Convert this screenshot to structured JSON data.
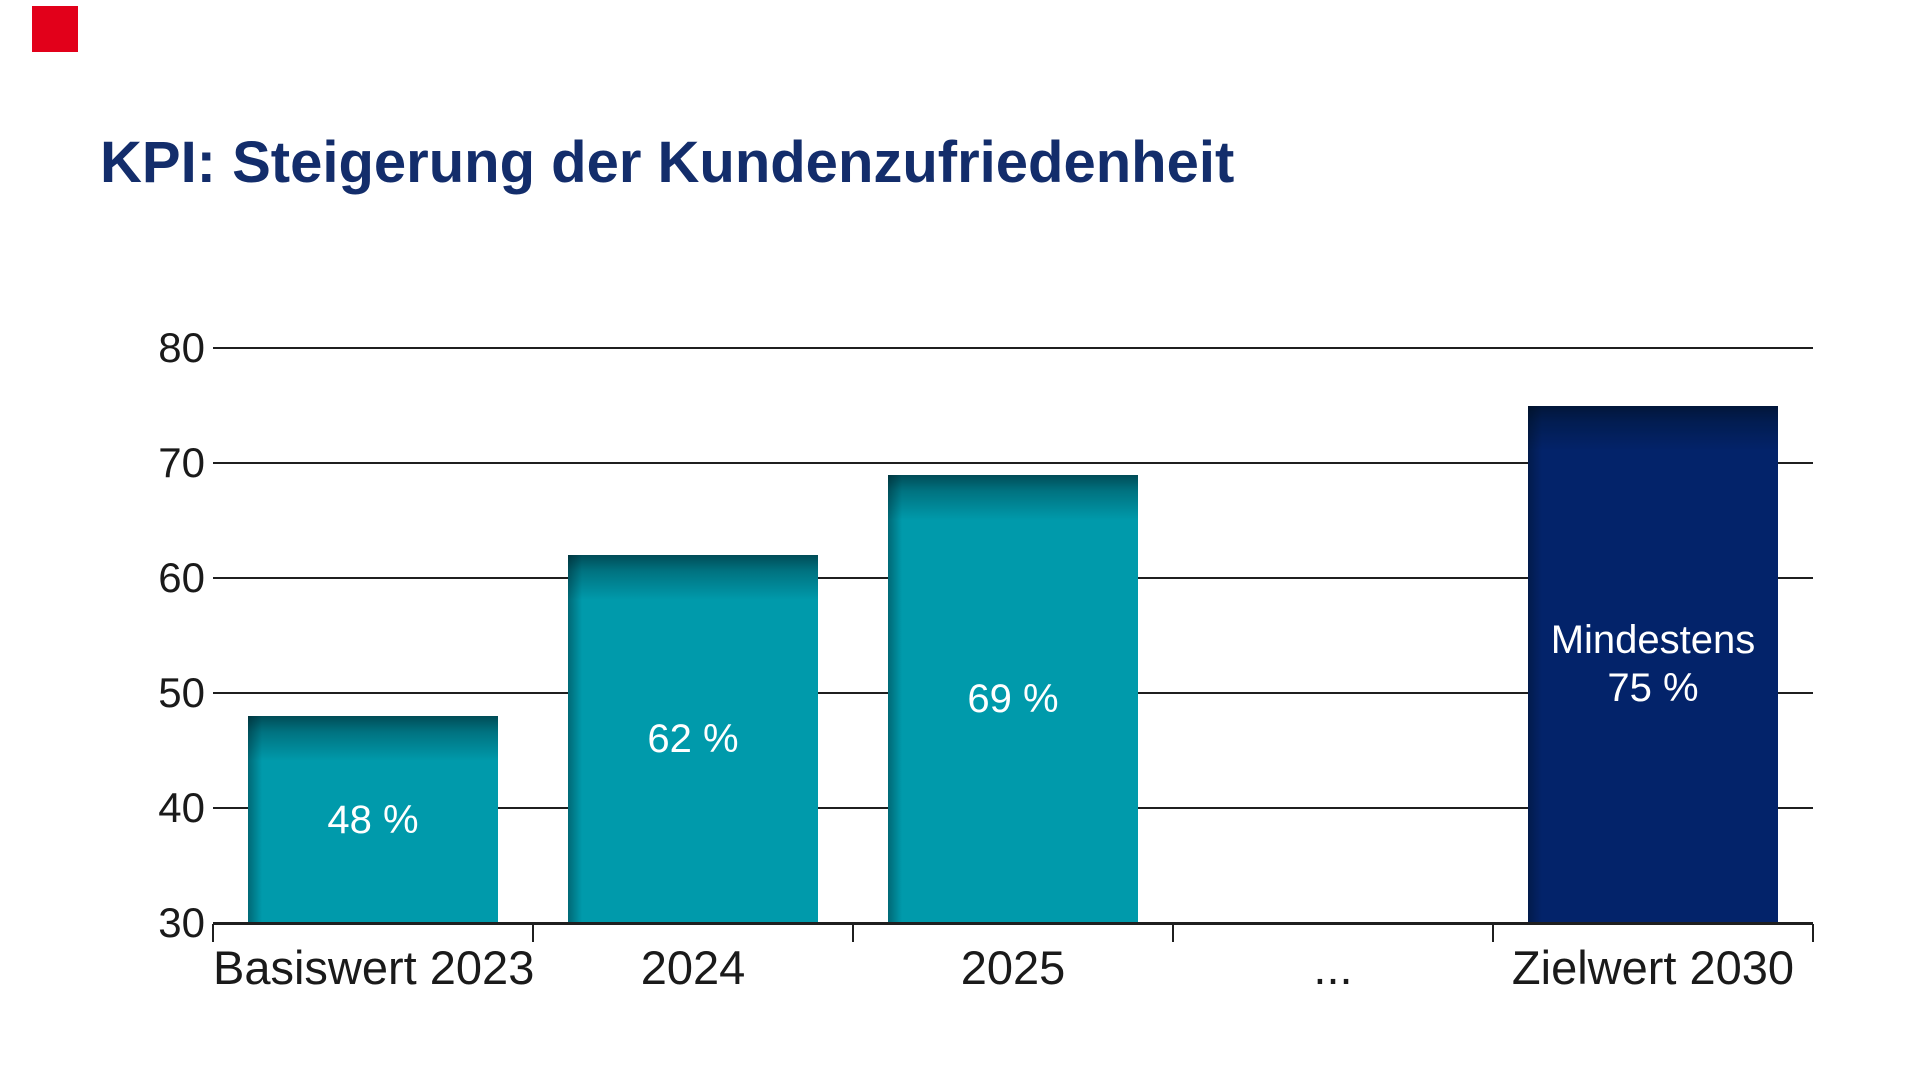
{
  "page": {
    "background": "#ffffff"
  },
  "logo": {
    "color": "#e2001a"
  },
  "title": {
    "text": "KPI: Steigerung der Kundenzufriedenheit",
    "color": "#132d6b"
  },
  "chart_data": {
    "type": "bar",
    "title": "KPI: Steigerung der Kundenzufriedenheit",
    "categories": [
      "Basiswert 2023",
      "2024",
      "2025",
      "...",
      "Zielwert 2030"
    ],
    "values": [
      48,
      62,
      69,
      null,
      75
    ],
    "bar_labels": [
      "48 %",
      "62 %",
      "69 %",
      "",
      "Mindestens\n75 %"
    ],
    "bar_colors": [
      "#009aab",
      "#009aab",
      "#009aab",
      null,
      "#03236a"
    ],
    "xlabel": "",
    "ylabel": "",
    "ylim": [
      30,
      80
    ],
    "yticks": [
      30,
      40,
      50,
      60,
      70,
      80
    ],
    "grid": true,
    "legend": false,
    "grid_color": "#1f1f1f",
    "text_color": "#1a1a1a"
  }
}
